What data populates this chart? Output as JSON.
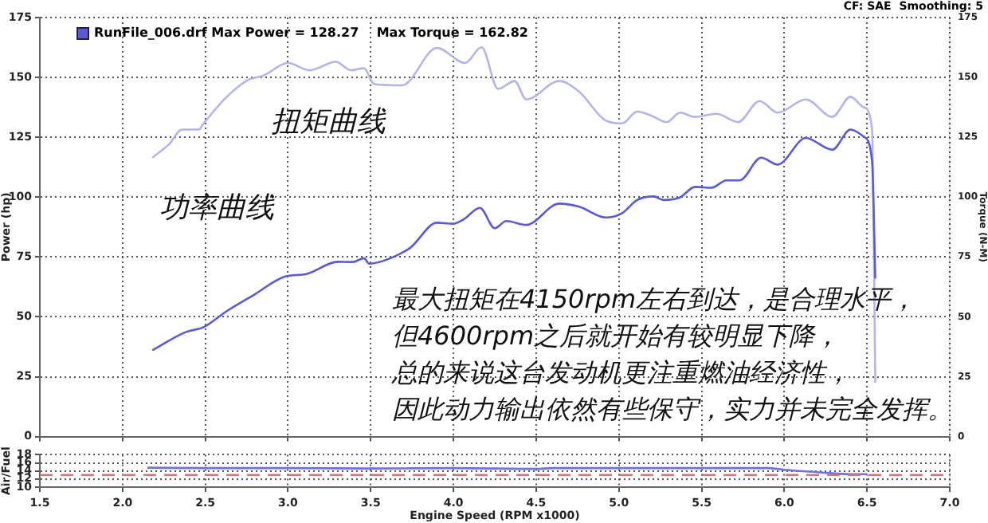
{
  "chart_data": [
    {
      "type": "line",
      "ylabel": "Power (hp)",
      "y2label": "Torque (N-M)",
      "xlim": [
        1.5,
        7
      ],
      "xticks": [
        1.5,
        2,
        2.5,
        3,
        3.5,
        4,
        4.5,
        5,
        5.5,
        6,
        6.5,
        7
      ],
      "ylim": [
        0,
        175
      ],
      "yticks": [
        0,
        25,
        50,
        75,
        100,
        125,
        150,
        175
      ],
      "y2lim": [
        0,
        175
      ],
      "y2ticks": [
        0,
        25,
        50,
        75,
        100,
        125,
        150,
        175
      ],
      "grid": true,
      "tick_labels": "y",
      "marker": "none",
      "line_style": "solid",
      "annotations": [
        "RunFile_006.drf Max Power = 128.27    Max Torque = 162.82",
        "CF: SAE  Smoothing: 5",
        "扭矩曲线",
        "功率曲线",
        "最大扭矩在4150rpm左右到达，是合理水平，",
        "但4600rpm之后就开始有较明显下降，",
        "总的来说这台发动机更注重燃油经济性，",
        "因此动力输出依然有些保守，实力并未完全发挥。"
      ],
      "series": [
        {
          "color": "#5a5ad6",
          "x": [
            2.18,
            2.38,
            2.49,
            2.63,
            2.79,
            2.98,
            3.11,
            3.3,
            3.39,
            3.46,
            3.49,
            3.62,
            3.74,
            3.9,
            4.0,
            4.06,
            4.16,
            4.25,
            4.32,
            4.44,
            4.64,
            4.76,
            4.92,
            5.02,
            5.11,
            5.21,
            5.27,
            5.37,
            5.46,
            5.56,
            5.65,
            5.73,
            5.86,
            5.96,
            6.13,
            6.29,
            6.4,
            6.48,
            6.53,
            6.55
          ],
          "values": [
            36,
            43.6,
            45.7,
            52.4,
            59,
            66.8,
            67.9,
            73,
            72.9,
            74.5,
            72.2,
            74.5,
            78.9,
            89.3,
            88.9,
            90.6,
            95.5,
            87,
            90,
            88.4,
            97.3,
            96,
            91.5,
            93.3,
            98.8,
            100.3,
            98.8,
            99.9,
            104.3,
            103.9,
            107,
            107,
            116.5,
            113.6,
            124.7,
            119.8,
            128.2,
            125.3,
            115.4,
            66
          ]
        },
        {
          "color": "#b4b4ec",
          "x": [
            2.18,
            2.28,
            2.36,
            2.46,
            2.49,
            2.63,
            2.76,
            2.85,
            3.0,
            3.13,
            3.29,
            3.38,
            3.46,
            3.52,
            3.69,
            3.9,
            4.07,
            4.17,
            4.27,
            4.37,
            4.44,
            4.64,
            4.76,
            4.92,
            5.02,
            5.11,
            5.19,
            5.29,
            5.37,
            5.46,
            5.59,
            5.72,
            5.85,
            5.96,
            6.13,
            6.29,
            6.4,
            6.48,
            6.53,
            6.55
          ],
          "values": [
            116.5,
            122,
            128.2,
            128.2,
            130.8,
            141.9,
            149,
            150.7,
            156,
            153,
            156.5,
            153,
            153.8,
            147.2,
            146.7,
            162.3,
            156,
            162.6,
            145.2,
            148.5,
            140.8,
            148.5,
            144,
            132,
            130.8,
            135.7,
            134.2,
            131.3,
            135.3,
            133.5,
            134.8,
            131.3,
            140.1,
            135.3,
            140.8,
            133.5,
            141.9,
            137.5,
            128.6,
            22.5
          ]
        }
      ]
    },
    {
      "type": "line",
      "xlabel": "Engine Speed (RPM x1000)",
      "ylabel": "Air/Fuel",
      "xlim": [
        1.5,
        7
      ],
      "xticks": [
        1.5,
        {
          "value": 2,
          "label": "2.0"
        },
        2.5,
        {
          "value": 3,
          "label": "3.0"
        },
        3.5,
        {
          "value": 4,
          "label": "4.0"
        },
        4.5,
        {
          "value": 5,
          "label": "5.0"
        },
        5.5,
        {
          "value": 6,
          "label": "6.0"
        },
        6.5,
        {
          "value": 7,
          "label": "7.0"
        }
      ],
      "ylim": [
        10,
        18
      ],
      "yticks": [
        10,
        12,
        14,
        16,
        18
      ],
      "grid": true,
      "marker": "none",
      "line_style": "solid",
      "ref_lines": [
        {
          "axis": "y",
          "value": 13,
          "color": "#e07070",
          "line_style": "dashed"
        }
      ],
      "series": [
        {
          "color": "#7070e0",
          "x": [
            2.15,
            2.5,
            3,
            3.5,
            4,
            4.5,
            4.6,
            5,
            5.5,
            5.9,
            6.0,
            6.2,
            6.4,
            6.5
          ],
          "values": [
            14.8,
            14.7,
            14.7,
            14.6,
            14.7,
            14.5,
            14.7,
            14.7,
            14.7,
            14.7,
            14.3,
            13.7,
            13.2,
            13.2
          ]
        }
      ]
    }
  ]
}
